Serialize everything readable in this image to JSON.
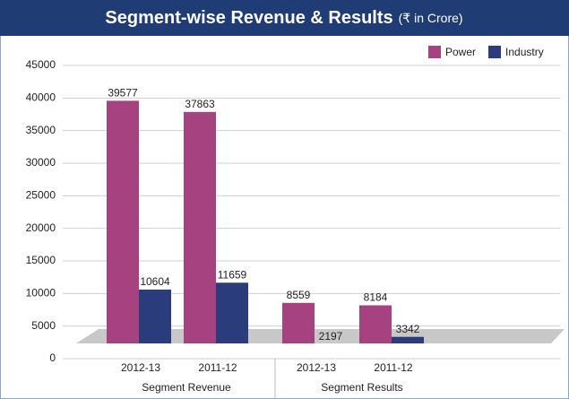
{
  "chart_data": {
    "type": "bar",
    "title": "Segment-wise Revenue & Results",
    "subtitle": "(₹ in Crore)",
    "categories": [
      "2012-13",
      "2011-12",
      "2012-13",
      "2011-12"
    ],
    "category_groups": [
      "Segment Revenue",
      "Segment Results"
    ],
    "series": [
      {
        "name": "Power",
        "color": "#a6427f",
        "values": [
          39577,
          37863,
          8559,
          8184
        ]
      },
      {
        "name": "Industry",
        "color": "#2b3c7c",
        "values": [
          10604,
          11659,
          2197,
          3342
        ]
      }
    ],
    "ylim": [
      0,
      45000
    ],
    "yticks": [
      0,
      5000,
      10000,
      15000,
      20000,
      25000,
      30000,
      35000,
      40000,
      45000
    ],
    "grid": true,
    "legend": "top-right"
  }
}
